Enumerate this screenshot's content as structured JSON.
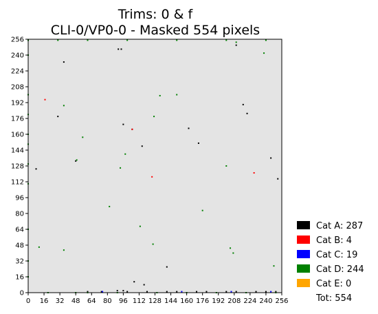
{
  "chart_data": {
    "type": "scatter",
    "title_line1": "Trims: 0 & f",
    "title_line2": "CLI-0/VP0-0 - Masked 554 pixels",
    "xlim": [
      0,
      256
    ],
    "ylim": [
      0,
      256
    ],
    "x_ticks": [
      0,
      16,
      32,
      48,
      64,
      80,
      96,
      112,
      128,
      144,
      160,
      176,
      192,
      208,
      224,
      240,
      256
    ],
    "y_ticks": [
      0,
      16,
      32,
      48,
      64,
      80,
      96,
      112,
      128,
      144,
      160,
      176,
      192,
      208,
      224,
      240,
      256
    ],
    "background_color": "#e4e4e4",
    "legend_position": "lower-right outside",
    "categories": [
      {
        "label": "Cat A: 287",
        "color": "#000000"
      },
      {
        "label": "Cat B: 4",
        "color": "#ff0000"
      },
      {
        "label": "Cat C: 19",
        "color": "#0000ff"
      },
      {
        "label": "Cat D: 244",
        "color": "#008000"
      },
      {
        "label": "Cat E: 0",
        "color": "#ffa500"
      }
    ],
    "total_label": "Tot: 554",
    "series": [
      {
        "category": 0,
        "points": [
          [
            91,
            246
          ],
          [
            94,
            246
          ],
          [
            210,
            250
          ],
          [
            36,
            233
          ],
          [
            30,
            178
          ],
          [
            74,
            1
          ],
          [
            105,
            165
          ],
          [
            115,
            148
          ],
          [
            172,
            151
          ],
          [
            162,
            166
          ],
          [
            217,
            190
          ],
          [
            221,
            181
          ],
          [
            48,
            133
          ],
          [
            8,
            125
          ],
          [
            140,
            26
          ],
          [
            107,
            11
          ],
          [
            117,
            8
          ],
          [
            90,
            2
          ],
          [
            96,
            2
          ],
          [
            252,
            115
          ],
          [
            245,
            136
          ],
          [
            96,
            170
          ],
          [
            60,
            1
          ],
          [
            120,
            1
          ],
          [
            150,
            1
          ],
          [
            180,
            1
          ],
          [
            210,
            1
          ],
          [
            240,
            1
          ],
          [
            100,
            1
          ],
          [
            140,
            1
          ],
          [
            170,
            1
          ],
          [
            200,
            1
          ],
          [
            230,
            1
          ],
          [
            250,
            1
          ]
        ]
      },
      {
        "category": 1,
        "points": [
          [
            17,
            195
          ],
          [
            105,
            165
          ],
          [
            125,
            117
          ],
          [
            228,
            121
          ]
        ]
      },
      {
        "category": 2,
        "points": [
          [
            75,
            1
          ],
          [
            155,
            1
          ],
          [
            205,
            1
          ],
          [
            245,
            1
          ]
        ]
      },
      {
        "category": 3,
        "points": [
          [
            0,
            255
          ],
          [
            0,
            240
          ],
          [
            0,
            200
          ],
          [
            0,
            180
          ],
          [
            0,
            160
          ],
          [
            0,
            150
          ],
          [
            0,
            130
          ],
          [
            0,
            110
          ],
          [
            0,
            64
          ],
          [
            0,
            32
          ],
          [
            0,
            16
          ],
          [
            20,
            0
          ],
          [
            48,
            0
          ],
          [
            60,
            0
          ],
          [
            90,
            0
          ],
          [
            130,
            0
          ],
          [
            160,
            0
          ],
          [
            190,
            0
          ],
          [
            220,
            0
          ],
          [
            250,
            0
          ],
          [
            210,
            253
          ],
          [
            238,
            242
          ],
          [
            36,
            189
          ],
          [
            55,
            157
          ],
          [
            127,
            178
          ],
          [
            133,
            199
          ],
          [
            150,
            200
          ],
          [
            93,
            126
          ],
          [
            98,
            140
          ],
          [
            49,
            134
          ],
          [
            200,
            128
          ],
          [
            82,
            87
          ],
          [
            113,
            67
          ],
          [
            126,
            49
          ],
          [
            176,
            83
          ],
          [
            36,
            43
          ],
          [
            11,
            46
          ],
          [
            204,
            45
          ],
          [
            207,
            40
          ],
          [
            248,
            27
          ],
          [
            30,
            255
          ],
          [
            60,
            255
          ],
          [
            100,
            255
          ],
          [
            150,
            255
          ],
          [
            200,
            255
          ],
          [
            240,
            255
          ]
        ]
      },
      {
        "category": 4,
        "points": []
      }
    ]
  }
}
